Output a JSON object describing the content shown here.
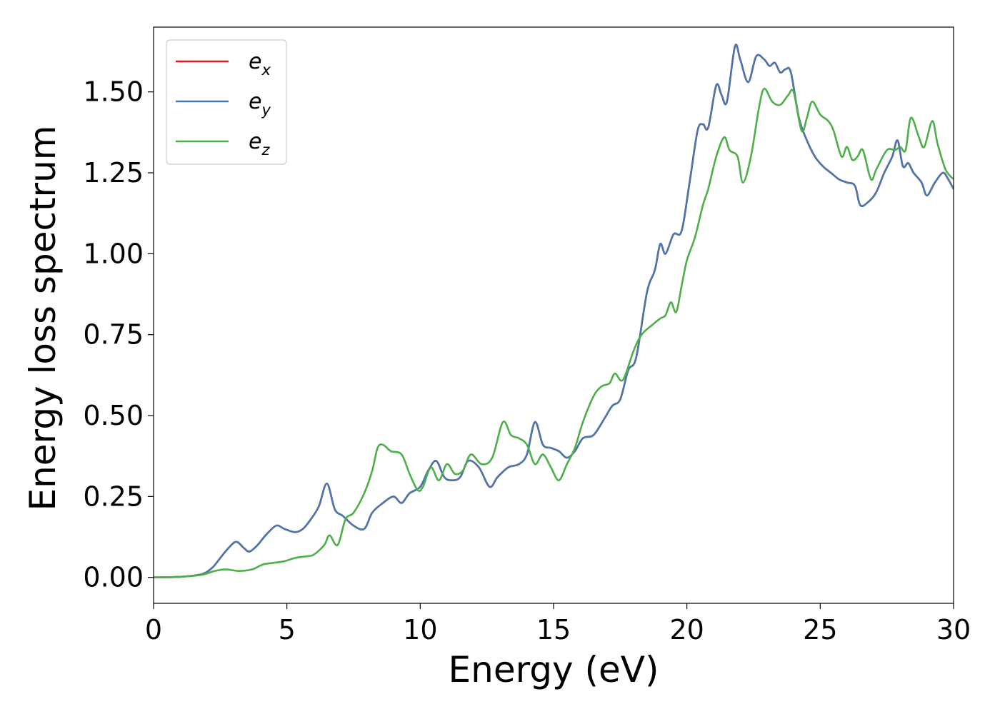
{
  "chart_data": {
    "type": "line",
    "xlabel": "Energy (eV)",
    "ylabel": "Energy loss spectrum",
    "xlim": [
      0,
      30
    ],
    "ylim": [
      -0.08,
      1.7
    ],
    "xticks": [
      0,
      5,
      10,
      15,
      20,
      25,
      30
    ],
    "xtick_labels": [
      "0",
      "5",
      "10",
      "15",
      "20",
      "25",
      "30"
    ],
    "yticks": [
      0.0,
      0.25,
      0.5,
      0.75,
      1.0,
      1.25,
      1.5
    ],
    "ytick_labels": [
      "0.00",
      "0.25",
      "0.50",
      "0.75",
      "1.00",
      "1.25",
      "1.50"
    ],
    "grid": false,
    "legend_position": "top-left",
    "series": [
      {
        "name": "e_x",
        "legend_base": "e",
        "legend_sub": "x",
        "color": "#e41a1c",
        "x": [
          0,
          1,
          1.8,
          2.2,
          2.5,
          2.8,
          3.1,
          3.4,
          3.6,
          3.9,
          4.2,
          4.6,
          4.9,
          5.3,
          5.6,
          5.9,
          6.2,
          6.5,
          6.8,
          7.1,
          7.5,
          7.9,
          8.2,
          8.6,
          9.0,
          9.3,
          9.6,
          10.0,
          10.3,
          10.6,
          10.9,
          11.2,
          11.5,
          11.8,
          12.2,
          12.6,
          12.9,
          13.3,
          13.7,
          14.0,
          14.3,
          14.6,
          14.9,
          15.2,
          15.5,
          15.8,
          16.1,
          16.5,
          16.9,
          17.2,
          17.5,
          17.8,
          18.1,
          18.5,
          18.8,
          19.0,
          19.2,
          19.5,
          19.8,
          20.1,
          20.4,
          20.6,
          20.8,
          21.1,
          21.3,
          21.5,
          21.8,
          22.0,
          22.3,
          22.6,
          22.9,
          23.1,
          23.3,
          23.5,
          23.7,
          23.9,
          24.2,
          24.5,
          24.8,
          25.1,
          25.4,
          25.7,
          26.0,
          26.3,
          26.5,
          26.8,
          27.1,
          27.4,
          27.7,
          27.9,
          28.1,
          28.3,
          28.5,
          28.8,
          29.0,
          29.3,
          29.6,
          29.8,
          30
        ],
        "y": [
          0.0,
          0.002,
          0.01,
          0.03,
          0.06,
          0.09,
          0.11,
          0.09,
          0.08,
          0.1,
          0.13,
          0.16,
          0.15,
          0.14,
          0.15,
          0.18,
          0.22,
          0.29,
          0.21,
          0.19,
          0.16,
          0.15,
          0.2,
          0.23,
          0.25,
          0.23,
          0.26,
          0.28,
          0.33,
          0.36,
          0.31,
          0.3,
          0.31,
          0.36,
          0.34,
          0.28,
          0.31,
          0.34,
          0.35,
          0.38,
          0.48,
          0.41,
          0.4,
          0.39,
          0.37,
          0.39,
          0.43,
          0.44,
          0.49,
          0.53,
          0.55,
          0.64,
          0.68,
          0.88,
          0.95,
          1.03,
          1.0,
          1.06,
          1.07,
          1.22,
          1.38,
          1.4,
          1.39,
          1.52,
          1.49,
          1.47,
          1.64,
          1.6,
          1.53,
          1.61,
          1.6,
          1.58,
          1.59,
          1.56,
          1.57,
          1.56,
          1.42,
          1.35,
          1.3,
          1.27,
          1.25,
          1.23,
          1.22,
          1.21,
          1.15,
          1.16,
          1.19,
          1.25,
          1.3,
          1.35,
          1.27,
          1.28,
          1.25,
          1.22,
          1.18,
          1.22,
          1.25,
          1.23,
          1.2
        ]
      },
      {
        "name": "e_y",
        "legend_base": "e",
        "legend_sub": "y",
        "color": "#4a78ae",
        "x": [
          0,
          1,
          1.8,
          2.2,
          2.5,
          2.8,
          3.1,
          3.4,
          3.6,
          3.9,
          4.2,
          4.6,
          4.9,
          5.3,
          5.6,
          5.9,
          6.2,
          6.5,
          6.8,
          7.1,
          7.5,
          7.9,
          8.2,
          8.6,
          9.0,
          9.3,
          9.6,
          10.0,
          10.3,
          10.6,
          10.9,
          11.2,
          11.5,
          11.8,
          12.2,
          12.6,
          12.9,
          13.3,
          13.7,
          14.0,
          14.3,
          14.6,
          14.9,
          15.2,
          15.5,
          15.8,
          16.1,
          16.5,
          16.9,
          17.2,
          17.5,
          17.8,
          18.1,
          18.5,
          18.8,
          19.0,
          19.2,
          19.5,
          19.8,
          20.1,
          20.4,
          20.6,
          20.8,
          21.1,
          21.3,
          21.5,
          21.8,
          22.0,
          22.3,
          22.6,
          22.9,
          23.1,
          23.3,
          23.5,
          23.7,
          23.9,
          24.2,
          24.5,
          24.8,
          25.1,
          25.4,
          25.7,
          26.0,
          26.3,
          26.5,
          26.8,
          27.1,
          27.4,
          27.7,
          27.9,
          28.1,
          28.3,
          28.5,
          28.8,
          29.0,
          29.3,
          29.6,
          29.8,
          30
        ],
        "y": [
          0.0,
          0.002,
          0.01,
          0.03,
          0.06,
          0.09,
          0.11,
          0.09,
          0.08,
          0.1,
          0.13,
          0.16,
          0.15,
          0.14,
          0.15,
          0.18,
          0.22,
          0.29,
          0.21,
          0.19,
          0.16,
          0.15,
          0.2,
          0.23,
          0.25,
          0.23,
          0.26,
          0.28,
          0.33,
          0.36,
          0.31,
          0.3,
          0.31,
          0.36,
          0.34,
          0.28,
          0.31,
          0.34,
          0.35,
          0.38,
          0.48,
          0.41,
          0.4,
          0.39,
          0.37,
          0.39,
          0.43,
          0.44,
          0.49,
          0.53,
          0.55,
          0.64,
          0.68,
          0.88,
          0.95,
          1.03,
          1.0,
          1.06,
          1.07,
          1.22,
          1.38,
          1.4,
          1.39,
          1.52,
          1.49,
          1.47,
          1.64,
          1.6,
          1.53,
          1.61,
          1.6,
          1.58,
          1.59,
          1.56,
          1.57,
          1.56,
          1.42,
          1.35,
          1.3,
          1.27,
          1.25,
          1.23,
          1.22,
          1.21,
          1.15,
          1.16,
          1.19,
          1.25,
          1.3,
          1.35,
          1.27,
          1.28,
          1.25,
          1.22,
          1.18,
          1.22,
          1.25,
          1.23,
          1.2
        ]
      },
      {
        "name": "e_z",
        "legend_base": "e",
        "legend_sub": "z",
        "color": "#4daf4a",
        "x": [
          0,
          1,
          1.8,
          2.3,
          2.7,
          3.2,
          3.7,
          4.1,
          4.5,
          4.9,
          5.3,
          5.7,
          6.0,
          6.4,
          6.6,
          6.9,
          7.2,
          7.5,
          7.9,
          8.2,
          8.4,
          8.6,
          8.9,
          9.3,
          9.6,
          9.9,
          10.1,
          10.4,
          10.7,
          11.0,
          11.3,
          11.6,
          11.9,
          12.3,
          12.7,
          13.1,
          13.4,
          13.7,
          14.0,
          14.3,
          14.6,
          14.9,
          15.2,
          15.5,
          15.8,
          16.1,
          16.5,
          16.8,
          17.1,
          17.3,
          17.6,
          18.0,
          18.3,
          18.7,
          19.0,
          19.2,
          19.4,
          19.6,
          19.8,
          20.0,
          20.3,
          20.6,
          20.8,
          21.1,
          21.4,
          21.6,
          21.9,
          22.1,
          22.4,
          22.7,
          22.9,
          23.2,
          23.5,
          23.8,
          24.0,
          24.3,
          24.5,
          24.7,
          25.0,
          25.3,
          25.5,
          25.8,
          26.0,
          26.2,
          26.4,
          26.6,
          26.9,
          27.1,
          27.5,
          27.8,
          28.0,
          28.2,
          28.4,
          28.7,
          28.9,
          29.2,
          29.4,
          29.7,
          30
        ],
        "y": [
          0.0,
          0.002,
          0.008,
          0.02,
          0.025,
          0.02,
          0.025,
          0.04,
          0.045,
          0.05,
          0.06,
          0.065,
          0.07,
          0.1,
          0.13,
          0.1,
          0.18,
          0.2,
          0.26,
          0.33,
          0.4,
          0.41,
          0.39,
          0.38,
          0.32,
          0.27,
          0.28,
          0.34,
          0.3,
          0.35,
          0.32,
          0.33,
          0.38,
          0.35,
          0.37,
          0.48,
          0.44,
          0.43,
          0.41,
          0.35,
          0.38,
          0.34,
          0.3,
          0.35,
          0.4,
          0.48,
          0.56,
          0.59,
          0.6,
          0.63,
          0.61,
          0.7,
          0.75,
          0.78,
          0.8,
          0.81,
          0.85,
          0.82,
          0.9,
          0.98,
          1.05,
          1.15,
          1.2,
          1.3,
          1.36,
          1.32,
          1.3,
          1.22,
          1.3,
          1.45,
          1.51,
          1.47,
          1.46,
          1.49,
          1.5,
          1.38,
          1.42,
          1.47,
          1.43,
          1.41,
          1.38,
          1.3,
          1.33,
          1.29,
          1.3,
          1.32,
          1.23,
          1.26,
          1.32,
          1.32,
          1.33,
          1.32,
          1.42,
          1.36,
          1.33,
          1.41,
          1.34,
          1.26,
          1.23
        ]
      }
    ]
  }
}
